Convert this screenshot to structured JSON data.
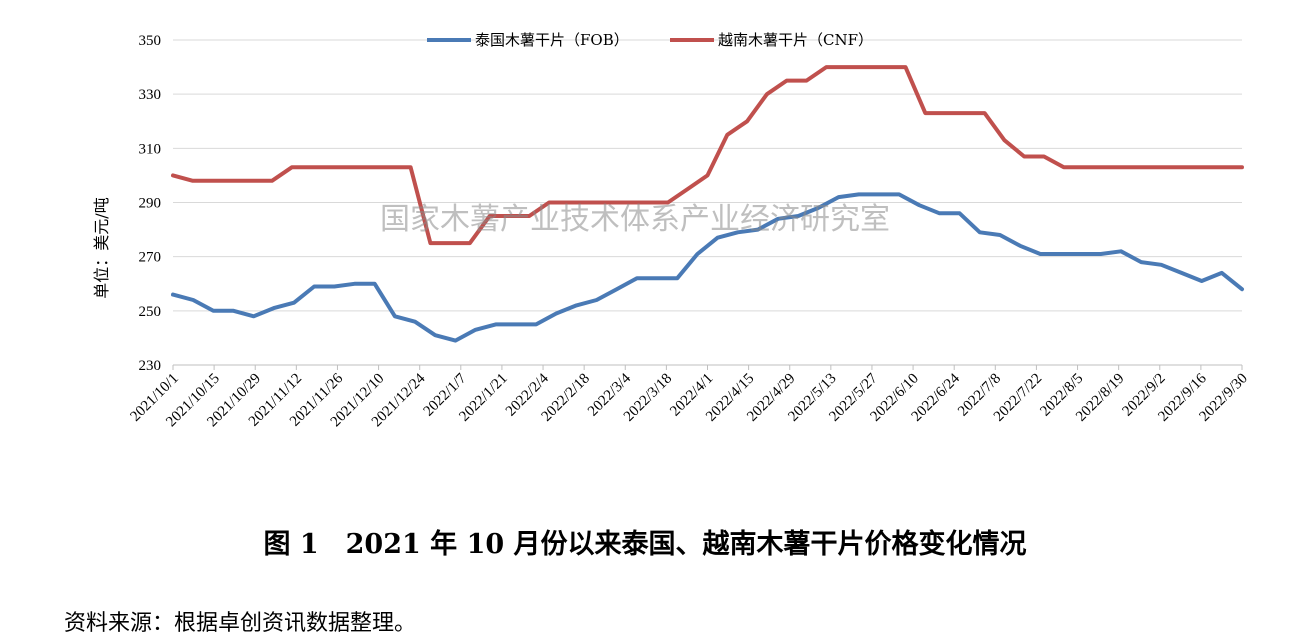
{
  "chart_data": {
    "type": "line",
    "ylabel": "单位：美元/吨",
    "ylim": [
      230,
      350
    ],
    "yticks": [
      230,
      250,
      270,
      290,
      310,
      330,
      350
    ],
    "grid": true,
    "legend_position": "top-center",
    "watermark": "国家木薯产业技术体系产业经济研究室",
    "x_tick_labels": [
      "2021/10/1",
      "2021/10/15",
      "2021/10/29",
      "2021/11/12",
      "2021/11/26",
      "2021/12/10",
      "2021/12/24",
      "2022/1/7",
      "2022/1/21",
      "2022/2/4",
      "2022/2/18",
      "2022/3/4",
      "2022/3/18",
      "2022/4/1",
      "2022/4/15",
      "2022/4/29",
      "2022/5/13",
      "2022/5/27",
      "2022/6/10",
      "2022/6/24",
      "2022/7/8",
      "2022/7/22",
      "2022/8/5",
      "2022/8/19",
      "2022/9/2",
      "2022/9/16",
      "2022/9/30"
    ],
    "series": [
      {
        "name": "泰国木薯干片（FOB）",
        "color": "#4a7ab5",
        "values": [
          256,
          254,
          250,
          250,
          248,
          251,
          253,
          259,
          259,
          260,
          260,
          248,
          246,
          241,
          239,
          243,
          245,
          245,
          245,
          249,
          252,
          254,
          258,
          262,
          262,
          262,
          271,
          277,
          279,
          280,
          284,
          285,
          288,
          292,
          293,
          293,
          293,
          289,
          286,
          286,
          279,
          278,
          274,
          271,
          271,
          271,
          271,
          272,
          268,
          267,
          264,
          261,
          264,
          258
        ]
      },
      {
        "name": "越南木薯干片（CNF）",
        "color": "#c0504d",
        "values": [
          300,
          298,
          298,
          298,
          298,
          298,
          303,
          303,
          303,
          303,
          303,
          303,
          303,
          275,
          275,
          275,
          285,
          285,
          285,
          290,
          290,
          290,
          290,
          290,
          290,
          290,
          295,
          300,
          315,
          320,
          330,
          335,
          335,
          340,
          340,
          340,
          340,
          340,
          323,
          323,
          323,
          323,
          313,
          307,
          307,
          303,
          303,
          303,
          303,
          303,
          303,
          303,
          303,
          303,
          303
        ]
      }
    ]
  },
  "caption": "图 1　2021 年 10 月份以来泰国、越南木薯干片价格变化情况",
  "source_note": "资料来源：根据卓创资讯数据整理。"
}
